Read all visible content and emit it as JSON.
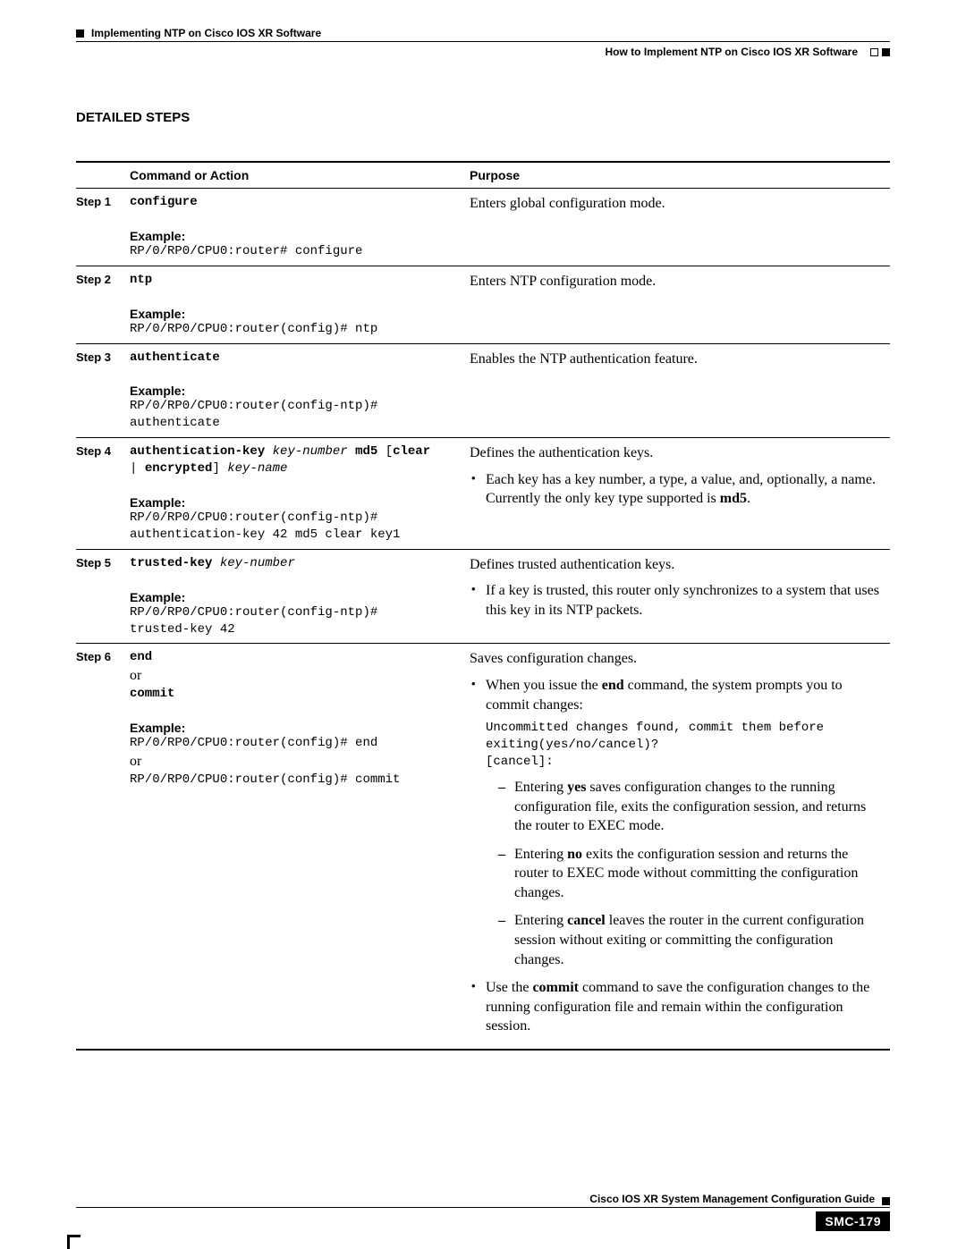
{
  "header": {
    "chapter": "Implementing NTP on Cisco IOS XR Software",
    "section": "How to Implement NTP on Cisco IOS XR Software"
  },
  "heading": "DETAILED STEPS",
  "columns": {
    "cmd": "Command or Action",
    "purpose": "Purpose"
  },
  "steps": [
    {
      "label": "Step 1",
      "cmd_bold": "configure",
      "example_label": "Example:",
      "example": "RP/0/RP0/CPU0:router# configure",
      "purpose": "Enters global configuration mode."
    },
    {
      "label": "Step 2",
      "cmd_bold": "ntp",
      "example_label": "Example:",
      "example": "RP/0/RP0/CPU0:router(config)# ntp",
      "purpose": "Enters NTP configuration mode."
    },
    {
      "label": "Step 3",
      "cmd_bold": "authenticate",
      "example_label": "Example:",
      "example": "RP/0/RP0/CPU0:router(config-ntp)# authenticate",
      "purpose": "Enables the NTP authentication feature."
    },
    {
      "label": "Step 4",
      "cmd_seg1": "authentication-key",
      "cmd_seg2": "key-number",
      "cmd_seg3": "md5",
      "cmd_seg4": "[",
      "cmd_seg5": "clear",
      "cmd_seg6": " | ",
      "cmd_seg7": "encrypted",
      "cmd_seg8": "]",
      "cmd_seg9": "key-name",
      "example_label": "Example:",
      "example": "RP/0/RP0/CPU0:router(config-ntp)# authentication-key 42 md5 clear key1",
      "purpose": "Defines the authentication keys.",
      "bullet_pre": "Each key has a key number, a type, a value, and, optionally, a name. Currently the only key type supported is ",
      "bullet_bold": "md5",
      "bullet_post": "."
    },
    {
      "label": "Step 5",
      "cmd_seg1": "trusted-key",
      "cmd_seg2": "key-number",
      "example_label": "Example:",
      "example": "RP/0/RP0/CPU0:router(config-ntp)# trusted-key 42",
      "purpose": "Defines trusted authentication keys.",
      "bullet1": "If a key is trusted, this router only synchronizes to a system that uses this key in its NTP packets."
    },
    {
      "label": "Step 6",
      "cmd_seg1": "end",
      "or": "or",
      "cmd_seg2": "commit",
      "example_label": "Example:",
      "example1": "RP/0/RP0/CPU0:router(config)# end",
      "or2": "or",
      "example2": "RP/0/RP0/CPU0:router(config)# commit",
      "purpose": "Saves configuration changes.",
      "b1_pre": "When you issue the ",
      "b1_bold": "end",
      "b1_post": " command, the system prompts you to commit changes:",
      "prompt": "Uncommitted changes found, commit them before exiting(yes/no/cancel)?\n[cancel]:",
      "s1_pre": "Entering ",
      "s1_bold": "yes",
      "s1_post": " saves configuration changes to the running configuration file, exits the configuration session, and returns the router to EXEC mode.",
      "s2_pre": "Entering ",
      "s2_bold": "no",
      "s2_post": " exits the configuration session and returns the router to EXEC mode without committing the configuration changes.",
      "s3_pre": "Entering ",
      "s3_bold": "cancel",
      "s3_post": " leaves the router in the current configuration session without exiting or committing the configuration changes.",
      "b2_pre": "Use the ",
      "b2_bold": "commit",
      "b2_post": " command to save the configuration changes to the running configuration file and remain within the configuration session."
    }
  ],
  "footer": {
    "guide": "Cisco IOS XR System Management Configuration Guide",
    "page": "SMC-179"
  }
}
